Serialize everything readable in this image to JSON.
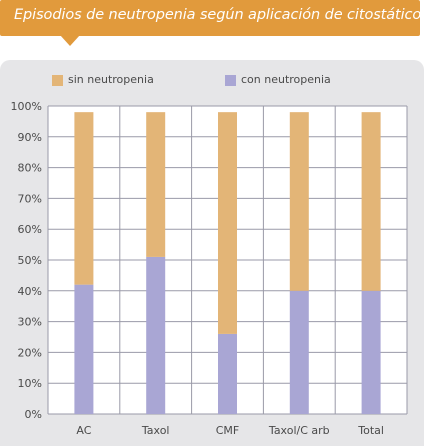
{
  "title": "Episodios de neutropenia según aplicación de citostáticos",
  "colors": {
    "banner": "#e19a3c",
    "panel": "#e6e6e8",
    "sin_neutropenia": "#e3b577",
    "con_neutropenia": "#a9a6d4"
  },
  "legend": {
    "sin_label": "sin neutropenia",
    "con_label": "con neutropenia",
    "placement": "top"
  },
  "chart_data": {
    "type": "bar",
    "stacked": true,
    "categories": [
      "AC",
      "Taxol",
      "CMF",
      "Taxol/C arb",
      "Total"
    ],
    "series": [
      {
        "name": "con neutropenia",
        "values": [
          42,
          51,
          26,
          40,
          40
        ]
      },
      {
        "name": "sin neutropenia",
        "values": [
          56,
          47,
          72,
          58,
          58
        ]
      }
    ],
    "ylim": [
      0,
      100
    ],
    "yticks": [
      "0%",
      "10%",
      "20%",
      "30%",
      "40%",
      "50%",
      "60%",
      "70%",
      "80%",
      "90%",
      "100%"
    ],
    "grid": true,
    "xlabel": "",
    "ylabel": ""
  }
}
